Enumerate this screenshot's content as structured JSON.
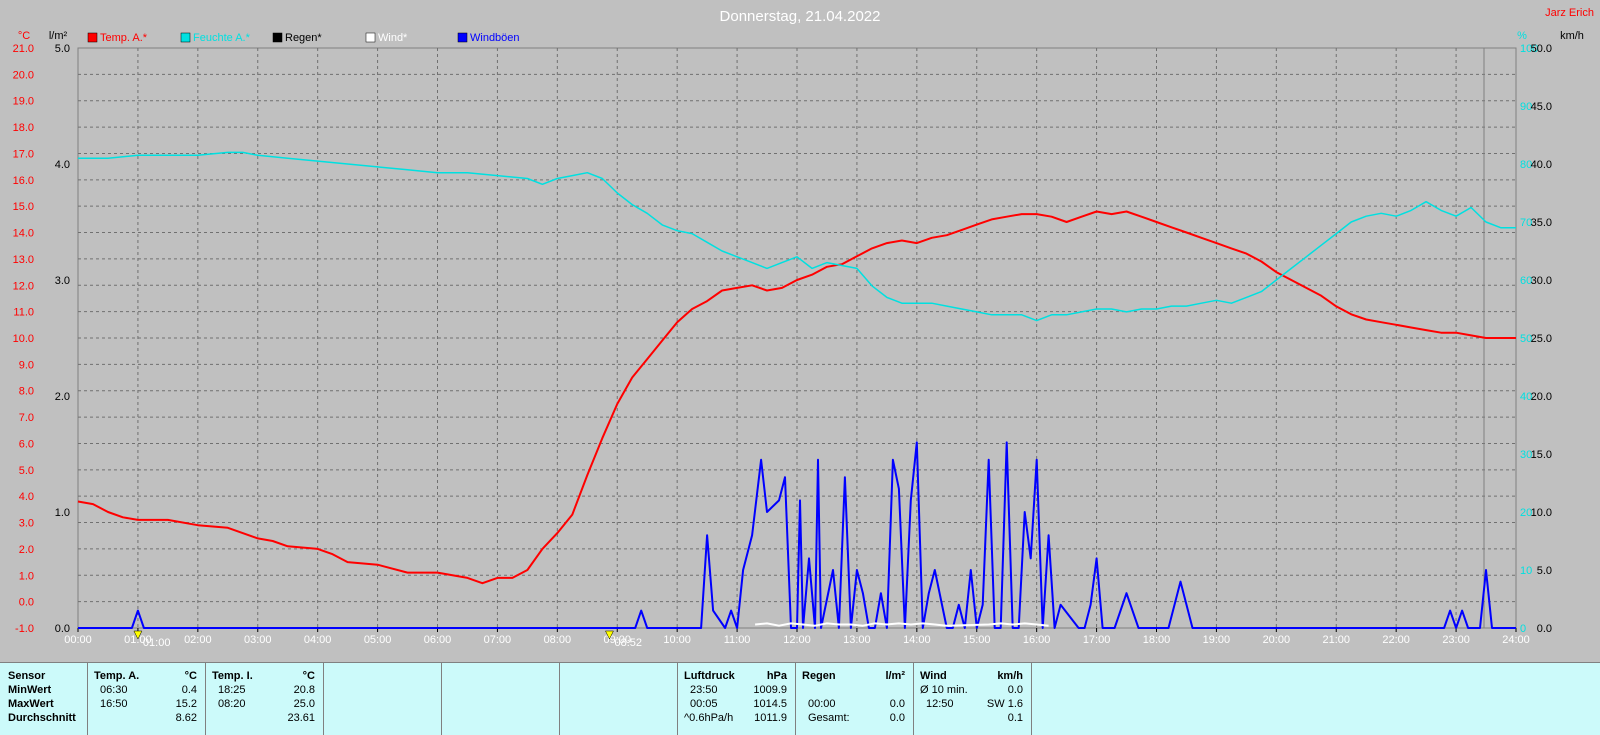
{
  "title": "Donnerstag, 21.04.2022",
  "author": "Jarz Erich",
  "legend": [
    {
      "label": "Temp. A.*",
      "color": "#ff0000"
    },
    {
      "label": "Feuchte A.*",
      "color": "#00e0e0"
    },
    {
      "label": "Regen*",
      "color": "#000000"
    },
    {
      "label": "Wind*",
      "color": "#ffffff"
    },
    {
      "label": "Windböen",
      "color": "#0000ff"
    }
  ],
  "chart_data": {
    "type": "line",
    "title": "Donnerstag, 21.04.2022",
    "x_ticks": [
      "00:00",
      "01:00",
      "02:00",
      "03:00",
      "04:00",
      "05:00",
      "06:00",
      "07:00",
      "08:00",
      "09:00",
      "10:00",
      "11:00",
      "12:00",
      "13:00",
      "14:00",
      "15:00",
      "16:00",
      "17:00",
      "18:00",
      "19:00",
      "20:00",
      "21:00",
      "22:00",
      "23:00",
      "24:00"
    ],
    "x_range_hours": [
      0,
      24
    ],
    "grid": true,
    "axes": {
      "temp": {
        "unit": "°C",
        "range": [
          -1.0,
          21.0
        ],
        "ticks": [
          "21.0",
          "20.0",
          "19.0",
          "18.0",
          "17.0",
          "16.0",
          "15.0",
          "14.0",
          "13.0",
          "12.0",
          "11.0",
          "10.0",
          "9.0",
          "8.0",
          "7.0",
          "6.0",
          "5.0",
          "4.0",
          "3.0",
          "2.0",
          "1.0",
          "0.0",
          "-1.0"
        ],
        "color": "#ff0000"
      },
      "rain": {
        "unit": "l/m²",
        "range": [
          0,
          5.0
        ],
        "ticks": [
          "5.0",
          "4.0",
          "3.0",
          "2.0",
          "1.0",
          "0.0"
        ],
        "color": "#000000"
      },
      "humidity": {
        "unit": "%",
        "range": [
          0,
          100
        ],
        "ticks": [
          "100",
          "90",
          "80",
          "70",
          "60",
          "50",
          "40",
          "30",
          "20",
          "10",
          "0"
        ],
        "color": "#00e0e0"
      },
      "wind": {
        "unit": "km/h",
        "range": [
          0,
          50.0
        ],
        "ticks": [
          "50.0",
          "45.0",
          "40.0",
          "35.0",
          "30.0",
          "25.0",
          "20.0",
          "15.0",
          "10.0",
          "5.0",
          "0.0"
        ],
        "color": "#000000"
      }
    },
    "markers": [
      {
        "label": "01:00",
        "x": 1.0
      },
      {
        "label": "08:52",
        "x": 8.87
      }
    ],
    "series": [
      {
        "name": "Temp. A.*",
        "axis": "temp",
        "color": "#ff0000",
        "x": [
          0,
          0.25,
          0.5,
          0.75,
          1.0,
          1.25,
          1.5,
          2.0,
          2.5,
          3.0,
          3.25,
          3.5,
          4.0,
          4.25,
          4.5,
          5.0,
          5.5,
          6.0,
          6.5,
          6.75,
          7.0,
          7.25,
          7.5,
          7.75,
          8.0,
          8.25,
          8.5,
          8.75,
          9.0,
          9.25,
          9.5,
          9.75,
          10.0,
          10.25,
          10.5,
          10.75,
          11.0,
          11.25,
          11.5,
          11.75,
          12.0,
          12.25,
          12.5,
          12.75,
          13.0,
          13.25,
          13.5,
          13.75,
          14.0,
          14.25,
          14.5,
          14.75,
          15.0,
          15.25,
          15.5,
          15.75,
          16.0,
          16.25,
          16.5,
          16.75,
          17.0,
          17.25,
          17.5,
          17.75,
          18.0,
          18.25,
          18.5,
          18.75,
          19.0,
          19.25,
          19.5,
          19.75,
          20.0,
          20.25,
          20.5,
          20.75,
          21.0,
          21.25,
          21.5,
          21.75,
          22.0,
          22.25,
          22.5,
          22.75,
          23.0,
          23.25,
          23.5,
          23.75,
          24.0
        ],
        "y": [
          3.8,
          3.7,
          3.4,
          3.2,
          3.1,
          3.1,
          3.1,
          2.9,
          2.8,
          2.4,
          2.3,
          2.1,
          2.0,
          1.8,
          1.5,
          1.4,
          1.1,
          1.1,
          0.9,
          0.7,
          0.9,
          0.9,
          1.2,
          2.0,
          2.6,
          3.3,
          4.8,
          6.2,
          7.5,
          8.5,
          9.2,
          9.9,
          10.6,
          11.1,
          11.4,
          11.8,
          11.9,
          12.0,
          11.8,
          11.9,
          12.2,
          12.4,
          12.7,
          12.8,
          13.1,
          13.4,
          13.6,
          13.7,
          13.6,
          13.8,
          13.9,
          14.1,
          14.3,
          14.5,
          14.6,
          14.7,
          14.7,
          14.6,
          14.4,
          14.6,
          14.8,
          14.7,
          14.8,
          14.6,
          14.4,
          14.2,
          14.0,
          13.8,
          13.6,
          13.4,
          13.2,
          12.9,
          12.5,
          12.2,
          11.9,
          11.6,
          11.2,
          10.9,
          10.7,
          10.6,
          10.5,
          10.4,
          10.3,
          10.2,
          10.2,
          10.1,
          10.0,
          10.0,
          10.0
        ]
      },
      {
        "name": "Feuchte A.*",
        "axis": "humidity",
        "color": "#00e0e0",
        "x": [
          0,
          0.5,
          1.0,
          1.5,
          2.0,
          2.5,
          2.75,
          3.0,
          3.5,
          4.0,
          4.5,
          5.0,
          5.5,
          6.0,
          6.5,
          7.0,
          7.5,
          7.75,
          8.0,
          8.25,
          8.5,
          8.75,
          9.0,
          9.25,
          9.5,
          9.75,
          10.0,
          10.25,
          10.5,
          10.75,
          11.0,
          11.25,
          11.5,
          11.75,
          12.0,
          12.25,
          12.5,
          12.75,
          13.0,
          13.25,
          13.5,
          13.75,
          14.0,
          14.25,
          14.5,
          14.75,
          15.0,
          15.25,
          15.5,
          15.75,
          16.0,
          16.25,
          16.5,
          16.75,
          17.0,
          17.25,
          17.5,
          17.75,
          18.0,
          18.25,
          18.5,
          18.75,
          19.0,
          19.25,
          19.5,
          19.75,
          20.0,
          20.25,
          20.5,
          20.75,
          21.0,
          21.25,
          21.5,
          21.75,
          22.0,
          22.25,
          22.5,
          22.75,
          23.0,
          23.25,
          23.5,
          23.75,
          24.0
        ],
        "y": [
          81,
          81,
          81.5,
          81.5,
          81.5,
          82,
          82,
          81.5,
          81,
          80.5,
          80,
          79.5,
          79,
          78.5,
          78.5,
          78,
          77.5,
          76.5,
          77.5,
          78,
          78.5,
          77.5,
          75,
          73,
          71.5,
          69.5,
          68.5,
          68,
          66.5,
          65,
          64,
          63,
          62,
          63,
          64,
          62,
          63,
          62.5,
          62,
          59,
          57,
          56,
          56,
          56,
          55.5,
          55,
          54.5,
          54,
          54,
          54,
          53,
          54,
          54,
          54.5,
          55,
          55,
          54.5,
          55,
          55,
          55.5,
          55.5,
          56,
          56.5,
          56,
          57,
          58,
          60,
          62,
          64,
          66,
          68,
          70,
          71,
          71.5,
          71,
          72,
          73.5,
          72,
          71,
          72.5,
          70,
          69,
          69
        ]
      },
      {
        "name": "Windböen",
        "axis": "wind",
        "color": "#0000ff",
        "x": [
          0,
          0.9,
          1.0,
          1.1,
          9.3,
          9.4,
          9.5,
          10.4,
          10.5,
          10.6,
          10.8,
          10.9,
          11.0,
          11.1,
          11.25,
          11.4,
          11.5,
          11.7,
          11.8,
          11.9,
          12.0,
          12.05,
          12.1,
          12.2,
          12.3,
          12.35,
          12.4,
          12.6,
          12.7,
          12.8,
          12.9,
          13.0,
          13.1,
          13.2,
          13.3,
          13.4,
          13.5,
          13.6,
          13.7,
          13.8,
          13.9,
          14.0,
          14.1,
          14.2,
          14.3,
          14.5,
          14.6,
          14.7,
          14.8,
          14.9,
          15.0,
          15.1,
          15.2,
          15.3,
          15.4,
          15.5,
          15.6,
          15.7,
          15.8,
          15.9,
          16.0,
          16.1,
          16.2,
          16.3,
          16.4,
          16.7,
          16.8,
          16.9,
          17.0,
          17.1,
          17.3,
          17.5,
          17.7,
          17.9,
          18.0,
          18.2,
          18.4,
          18.6,
          22.8,
          22.9,
          23.0,
          23.1,
          23.2,
          23.3,
          23.4,
          23.5,
          23.6,
          24.0
        ],
        "y": [
          0,
          0,
          1.5,
          0,
          0,
          1.5,
          0,
          0,
          8,
          1.5,
          0,
          1.5,
          0,
          5,
          8,
          14.5,
          10,
          11,
          13,
          0,
          0,
          11,
          0,
          6,
          0,
          14.5,
          0,
          5,
          0,
          13,
          0,
          5,
          3,
          0,
          0,
          3,
          0,
          14.5,
          12,
          0,
          11,
          16,
          0,
          3,
          5,
          0,
          0,
          2,
          0,
          5,
          0,
          2,
          14.5,
          0,
          0,
          16,
          0,
          0,
          10,
          6,
          14.5,
          0,
          8,
          0,
          2,
          0,
          0,
          2,
          6,
          0,
          0,
          3,
          0,
          0,
          0,
          0,
          4,
          0,
          0,
          1.5,
          0,
          1.5,
          0,
          0,
          0,
          5,
          0,
          0
        ]
      },
      {
        "name": "Wind*",
        "axis": "wind",
        "color": "#ffffff",
        "x": [
          11.3,
          11.5,
          11.7,
          11.9,
          12.1,
          12.3,
          12.5,
          12.7,
          12.9,
          13.1,
          13.3,
          13.5,
          13.7,
          13.9,
          14.1,
          14.3,
          14.5,
          15.2,
          15.4,
          15.6,
          15.8,
          16.0,
          16.2
        ],
        "y": [
          0.3,
          0.4,
          0.2,
          0.4,
          0.3,
          0.2,
          0.4,
          0.3,
          0.3,
          0.2,
          0.4,
          0.3,
          0.4,
          0.3,
          0.4,
          0.3,
          0.2,
          0.3,
          0.4,
          0.3,
          0.4,
          0.3,
          0.2
        ]
      }
    ]
  },
  "stats": {
    "sensor_header": "Sensor",
    "row_labels": [
      "MinWert",
      "MaxWert",
      "Durchschnitt"
    ],
    "temp_a": {
      "header": "Temp. A.",
      "unit": "°C",
      "min_time": "06:30",
      "min": "0.4",
      "max_time": "16:50",
      "max": "15.2",
      "avg": "8.62"
    },
    "temp_i": {
      "header": "Temp. I.",
      "unit": "°C",
      "min_time": "18:25",
      "min": "20.8",
      "max_time": "08:20",
      "max": "25.0",
      "avg": "23.61"
    },
    "luftdruck": {
      "header": "Luftdruck",
      "unit": "hPa",
      "r1_label": "23:50",
      "r1": "1009.9",
      "r2_label": "00:05",
      "r2": "1014.5",
      "r3_label": "^0.6hPa/h",
      "r3": "1011.9"
    },
    "regen": {
      "header": "Regen",
      "unit": "l/m²",
      "r2_label": "00:00",
      "r2": "0.0",
      "r3_label": "Gesamt:",
      "r3": "0.0"
    },
    "wind": {
      "header": "Wind",
      "unit": "km/h",
      "r1_label": "Ø 10 min.",
      "r1": "0.0",
      "r2_label": "12:50",
      "r2": "SW 1.6",
      "r3": "0.1"
    }
  }
}
